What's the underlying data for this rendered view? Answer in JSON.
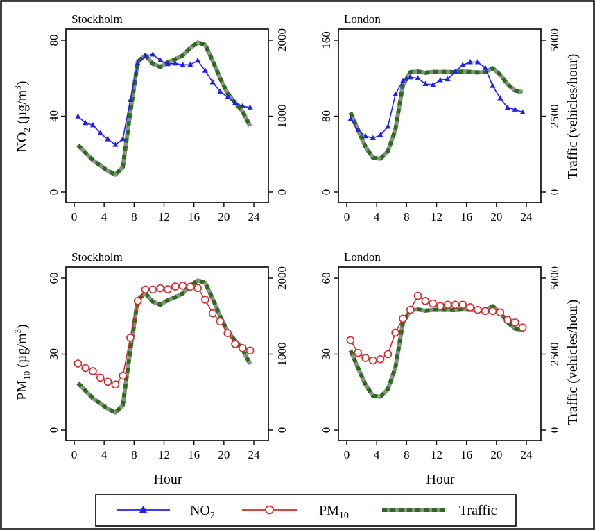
{
  "colors": {
    "no2": "#2020ee",
    "pm10": "#d02a2a",
    "traffic_green": "#2b6e1a",
    "traffic_gray": "#8c8c8c"
  },
  "legend": {
    "no2": {
      "text": "NO",
      "sub": "2"
    },
    "pm10": {
      "text": "PM",
      "sub": "10"
    },
    "traffic": {
      "text": "Traffic"
    }
  },
  "axes": {
    "xlabel": "Hour",
    "y_no2": {
      "text": "NO",
      "sub": "2",
      "unit": " (µg/m",
      "sup": "3",
      "close": ")"
    },
    "y_pm10": {
      "text": "PM",
      "sub": "10",
      "unit": " (µg/m",
      "sup": "3",
      "close": ")"
    },
    "y_traffic": "Traffic (vehicles/hour)"
  },
  "chart_data": [
    {
      "type": "line",
      "title": "Stockholm",
      "pollutant": "NO2",
      "x_ticks": [
        0,
        4,
        8,
        12,
        16,
        20,
        24
      ],
      "xlim": [
        0,
        24
      ],
      "y_left_ticks": [
        0,
        40,
        80
      ],
      "y_left_lim": [
        0,
        80
      ],
      "y_right_ticks": [
        0,
        1000,
        2000
      ],
      "y_right_lim": [
        0,
        2000
      ],
      "series": [
        {
          "name": "NO2",
          "axis": "left",
          "marker": "triangle",
          "x": [
            0.5,
            1.5,
            2.5,
            3.5,
            4.5,
            5.5,
            6.5,
            7.5,
            8.5,
            9.5,
            10.5,
            11.5,
            12.5,
            13.5,
            14.5,
            15.5,
            16.5,
            17.5,
            18.5,
            19.5,
            20.5,
            21.5,
            22.5,
            23.5
          ],
          "y": [
            39.9,
            36.4,
            35.3,
            31.0,
            27.9,
            25.0,
            28.0,
            48.6,
            67.9,
            71.8,
            72.5,
            69.4,
            67.5,
            67.8,
            67.1,
            67.1,
            69.3,
            64.0,
            57.9,
            53.0,
            50.0,
            47.0,
            45.3,
            44.6
          ]
        },
        {
          "name": "Traffic",
          "axis": "right",
          "x": [
            0.5,
            1.5,
            2.5,
            3.5,
            4.5,
            5.5,
            6.5,
            7.5,
            8.5,
            9.5,
            10.5,
            11.5,
            12.5,
            13.5,
            14.5,
            15.5,
            16.5,
            17.5,
            18.5,
            19.5,
            20.5,
            21.5,
            22.5,
            23.5
          ],
          "y": [
            620,
            520,
            420,
            350,
            280,
            230,
            330,
            1050,
            1720,
            1800,
            1690,
            1650,
            1710,
            1750,
            1800,
            1900,
            1970,
            1940,
            1730,
            1500,
            1300,
            1180,
            1060,
            870
          ]
        }
      ]
    },
    {
      "type": "line",
      "title": "London",
      "pollutant": "NO2",
      "x_ticks": [
        0,
        4,
        8,
        12,
        16,
        20,
        24
      ],
      "xlim": [
        0,
        24
      ],
      "y_left_ticks": [
        0,
        80,
        160
      ],
      "y_left_lim": [
        0,
        160
      ],
      "y_right_ticks": [
        0,
        2500,
        5000
      ],
      "y_right_lim": [
        0,
        5000
      ],
      "series": [
        {
          "name": "NO2",
          "axis": "left",
          "marker": "triangle",
          "x": [
            0.5,
            1.5,
            2.5,
            3.5,
            4.5,
            5.5,
            6.5,
            7.5,
            8.5,
            9.5,
            10.5,
            11.5,
            12.5,
            13.5,
            14.5,
            15.5,
            16.5,
            17.5,
            18.5,
            19.5,
            20.5,
            21.5,
            22.5,
            23.5
          ],
          "y": [
            77,
            65,
            59,
            57,
            60,
            69,
            103,
            117,
            121,
            120,
            114,
            113,
            118,
            119,
            127,
            134,
            137,
            137,
            131,
            112,
            99,
            89,
            87,
            84
          ]
        },
        {
          "name": "Traffic",
          "axis": "right",
          "x": [
            0.5,
            1.5,
            2.5,
            3.5,
            4.5,
            5.5,
            6.5,
            7.5,
            8.5,
            9.5,
            10.5,
            11.5,
            12.5,
            13.5,
            14.5,
            15.5,
            16.5,
            17.5,
            18.5,
            19.5,
            20.5,
            21.5,
            22.5,
            23.5
          ],
          "y": [
            2620,
            2050,
            1500,
            1130,
            1100,
            1350,
            2050,
            3520,
            3950,
            3970,
            3930,
            3960,
            3960,
            3960,
            3950,
            3970,
            3960,
            3940,
            3950,
            4080,
            3870,
            3550,
            3340,
            3290
          ]
        }
      ]
    },
    {
      "type": "line",
      "title": "Stockholm",
      "pollutant": "PM10",
      "x_ticks": [
        0,
        4,
        8,
        12,
        16,
        20,
        24
      ],
      "xlim": [
        0,
        24
      ],
      "y_left_ticks": [
        0,
        30,
        60
      ],
      "y_left_lim": [
        0,
        60
      ],
      "y_right_ticks": [
        0,
        1000,
        2000
      ],
      "y_right_lim": [
        0,
        2000
      ],
      "series": [
        {
          "name": "PM10",
          "axis": "left",
          "marker": "circle",
          "x": [
            0.5,
            1.5,
            2.5,
            3.5,
            4.5,
            5.5,
            6.5,
            7.5,
            8.5,
            9.5,
            10.5,
            11.5,
            12.5,
            13.5,
            14.5,
            15.5,
            16.5,
            17.5,
            18.5,
            19.5,
            20.5,
            21.5,
            22.5,
            23.5
          ],
          "y": [
            26.3,
            24.5,
            23.3,
            20.7,
            19.1,
            18.0,
            21.5,
            36.5,
            51.0,
            55.5,
            55.5,
            56.0,
            55.6,
            56.7,
            57.0,
            56.6,
            56.1,
            51.5,
            46.1,
            42.9,
            38.3,
            34.0,
            32.4,
            31.4
          ]
        },
        {
          "name": "Traffic",
          "axis": "right",
          "x": [
            0.5,
            1.5,
            2.5,
            3.5,
            4.5,
            5.5,
            6.5,
            7.5,
            8.5,
            9.5,
            10.5,
            11.5,
            12.5,
            13.5,
            14.5,
            15.5,
            16.5,
            17.5,
            18.5,
            19.5,
            20.5,
            21.5,
            22.5,
            23.5
          ],
          "y": [
            620,
            520,
            420,
            350,
            280,
            230,
            330,
            1050,
            1720,
            1800,
            1690,
            1650,
            1710,
            1750,
            1800,
            1900,
            1970,
            1940,
            1730,
            1500,
            1300,
            1180,
            1060,
            870
          ]
        }
      ]
    },
    {
      "type": "line",
      "title": "London",
      "pollutant": "PM10",
      "x_ticks": [
        0,
        4,
        8,
        12,
        16,
        20,
        24
      ],
      "xlim": [
        0,
        24
      ],
      "y_left_ticks": [
        0,
        30,
        60
      ],
      "y_left_lim": [
        0,
        60
      ],
      "y_right_ticks": [
        0,
        2500,
        5000
      ],
      "y_right_lim": [
        0,
        5000
      ],
      "series": [
        {
          "name": "PM10",
          "axis": "left",
          "marker": "circle",
          "x": [
            0.5,
            1.5,
            2.5,
            3.5,
            4.5,
            5.5,
            6.5,
            7.5,
            8.5,
            9.5,
            10.5,
            11.5,
            12.5,
            13.5,
            14.5,
            15.5,
            16.5,
            17.5,
            18.5,
            19.5,
            20.5,
            21.5,
            22.5,
            23.5
          ],
          "y": [
            35.5,
            30.5,
            28.5,
            27.5,
            28.0,
            30.0,
            38.5,
            44.0,
            47.5,
            53.0,
            51.0,
            50.0,
            49.0,
            49.5,
            49.5,
            49.5,
            48.5,
            47.5,
            47.0,
            47.0,
            46.5,
            43.5,
            42.5,
            40.5
          ]
        },
        {
          "name": "Traffic",
          "axis": "right",
          "x": [
            0.5,
            1.5,
            2.5,
            3.5,
            4.5,
            5.5,
            6.5,
            7.5,
            8.5,
            9.5,
            10.5,
            11.5,
            12.5,
            13.5,
            14.5,
            15.5,
            16.5,
            17.5,
            18.5,
            19.5,
            20.5,
            21.5,
            22.5,
            23.5
          ],
          "y": [
            2620,
            2050,
            1500,
            1130,
            1100,
            1350,
            2050,
            3520,
            3950,
            3970,
            3930,
            3960,
            3960,
            3960,
            3950,
            3970,
            3960,
            3940,
            3950,
            4080,
            3870,
            3550,
            3340,
            3290
          ]
        }
      ]
    }
  ]
}
